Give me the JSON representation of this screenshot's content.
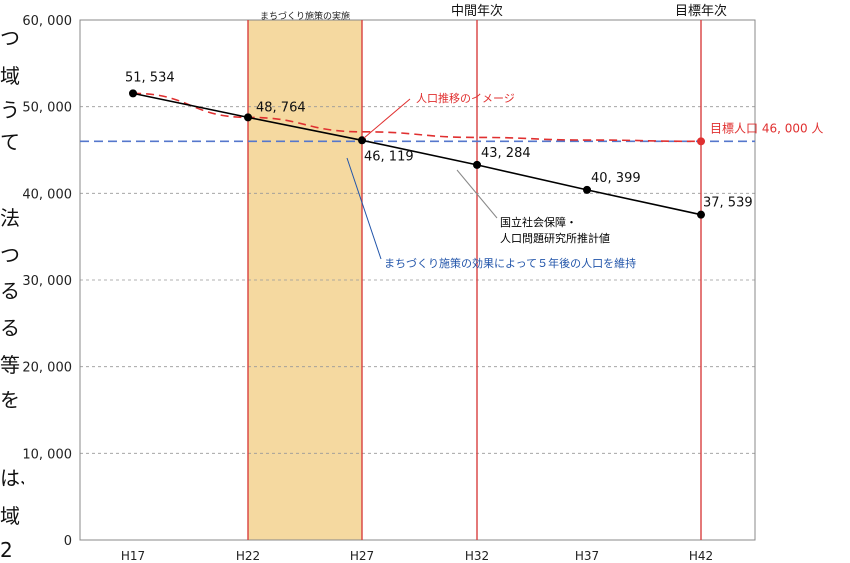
{
  "page_fragment": [
    "つ",
    "域",
    "う",
    "て",
    "法",
    "つ",
    "る",
    "る",
    "等",
    "を",
    "は、",
    "域",
    "2"
  ],
  "chart_data": {
    "type": "line",
    "categories": [
      "H17",
      "H22",
      "H27",
      "H32",
      "H37",
      "H42"
    ],
    "ylim": [
      0,
      60000
    ],
    "y_ticks": [
      0,
      10000,
      20000,
      30000,
      40000,
      50000,
      60000
    ],
    "y_tick_labels": [
      "0",
      "10, 000",
      "20, 000",
      "30, 000",
      "40, 000",
      "50, 000",
      "60, 000"
    ],
    "grid": "horizontal dashed",
    "series": [
      {
        "name": "国立社会保障・人口問題研究所推計値",
        "color": "#000000",
        "values": [
          51534,
          48764,
          46119,
          43284,
          40399,
          37539
        ],
        "labels": [
          "51, 534",
          "48, 764",
          "46, 119",
          "43, 284",
          "40, 399",
          "37, 539"
        ]
      },
      {
        "name": "人口推移のイメージ",
        "color": "#e03030",
        "style": "dashed",
        "x": [
          "H17",
          "H22",
          "H27",
          "H32",
          "H37",
          "H42"
        ],
        "values": [
          51534,
          48764,
          47100,
          46450,
          46150,
          46000
        ]
      }
    ],
    "target_line": {
      "value": 46000,
      "color": "#5577cc",
      "label": "目標人口 46, 000 人"
    },
    "shaded_period": {
      "from": "H22",
      "to": "H27",
      "label": "まちづくり施策の実施",
      "color": "#f5d9a0"
    },
    "vertical_markers": [
      {
        "at": "H22",
        "label": ""
      },
      {
        "at": "H27",
        "label": ""
      },
      {
        "at": "H32",
        "label": "中間年次"
      },
      {
        "at": "H42",
        "label": "目標年次"
      }
    ],
    "annotations": [
      {
        "text": "人口推移のイメージ",
        "color": "#e03030"
      },
      {
        "text": "国立社会保障・",
        "color": "#000000"
      },
      {
        "text": "人口問題研究所推計値",
        "color": "#000000"
      },
      {
        "text": "まちづくり施策の効果によって５年後の人口を維持",
        "color": "#2255aa"
      }
    ]
  }
}
